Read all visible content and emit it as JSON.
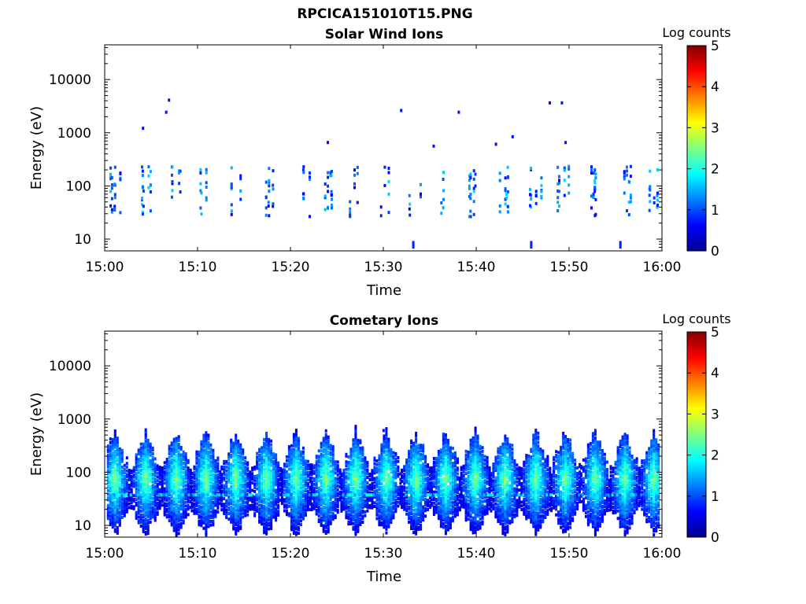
{
  "figure": {
    "title": "RPCICA151010T15.PNG"
  },
  "colors": {
    "cmap": [
      "#00008F",
      "#0000FF",
      "#0080FF",
      "#00FFFF",
      "#80FF80",
      "#FFFF00",
      "#FF8000",
      "#FF0000",
      "#800000"
    ],
    "axis": "#000000",
    "background": "#FFFFFF"
  },
  "chart_data": [
    {
      "type": "heatmap",
      "title": "Solar Wind Ions",
      "xlabel": "Time",
      "ylabel": "Energy (eV)",
      "x_ticks": [
        "15:00",
        "15:10",
        "15:20",
        "15:30",
        "15:40",
        "15:50",
        "16:00"
      ],
      "x_range_min": [
        0,
        60
      ],
      "y_scale": "log",
      "y_ticks": [
        10,
        100,
        1000,
        10000
      ],
      "y_range": [
        6,
        45000
      ],
      "colorbar": {
        "label": "Log counts",
        "range": [
          0,
          5
        ],
        "ticks": [
          0,
          1,
          2,
          3,
          4,
          5
        ]
      },
      "bursts_min": [
        1.0,
        4.3,
        7.6,
        10.8,
        14.0,
        17.7,
        21.3,
        24.0,
        26.7,
        29.9,
        33.3,
        36.3,
        39.6,
        42.8,
        46.3,
        49.2,
        52.4,
        55.9,
        59.2
      ],
      "peak_log_counts": 1.6,
      "isolated_points": [
        [
          4.0,
          1300
        ],
        [
          6.5,
          2600
        ],
        [
          6.8,
          4400
        ],
        [
          23.9,
          700
        ],
        [
          31.8,
          2800
        ],
        [
          35.3,
          600
        ],
        [
          38.0,
          2600
        ],
        [
          42.0,
          650
        ],
        [
          43.8,
          900
        ],
        [
          47.8,
          3900
        ],
        [
          49.1,
          3900
        ],
        [
          49.5,
          700
        ],
        [
          33.1,
          9
        ],
        [
          45.8,
          9
        ],
        [
          55.4,
          9
        ]
      ]
    },
    {
      "type": "heatmap",
      "title": "Cometary Ions",
      "xlabel": "Time",
      "ylabel": "Energy (eV)",
      "x_ticks": [
        "15:00",
        "15:10",
        "15:20",
        "15:30",
        "15:40",
        "15:50",
        "16:00"
      ],
      "x_range_min": [
        0,
        60
      ],
      "y_scale": "log",
      "y_ticks": [
        10,
        100,
        1000,
        10000
      ],
      "y_range": [
        6,
        45000
      ],
      "colorbar": {
        "label": "Log counts",
        "range": [
          0,
          5
        ],
        "ticks": [
          0,
          1,
          2,
          3,
          4,
          5
        ]
      },
      "bursts_min": [
        1.0,
        4.3,
        7.6,
        10.8,
        14.0,
        17.3,
        20.5,
        23.7,
        26.9,
        30.2,
        33.4,
        36.6,
        39.8,
        43.0,
        46.3,
        49.5,
        52.7,
        55.9,
        59.0
      ],
      "peak_log_counts": 2.3,
      "band_energy_eV": 40,
      "isolated_points": [
        [
          29.9,
          650
        ]
      ]
    }
  ]
}
